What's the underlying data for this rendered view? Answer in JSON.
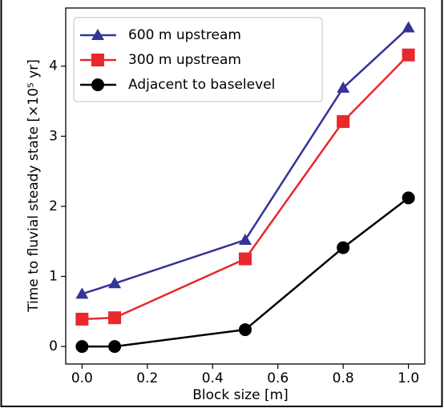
{
  "chart_data": {
    "type": "line",
    "xlabel": "Block size [m]",
    "ylabel": "Time to fluvial steady state [×10⁵ yr]",
    "x": [
      0.0,
      0.1,
      0.5,
      0.8,
      1.0
    ],
    "series": [
      {
        "name": "600 m upstream",
        "color": "#333399",
        "marker": "triangle",
        "values": [
          0.75,
          0.9,
          1.52,
          3.69,
          4.55
        ]
      },
      {
        "name": "300 m upstream",
        "color": "#e8282b",
        "marker": "square",
        "values": [
          0.39,
          0.41,
          1.25,
          3.21,
          4.16
        ]
      },
      {
        "name": "Adjacent to baselevel",
        "color": "#000000",
        "marker": "circle",
        "values": [
          0.0,
          0.0,
          0.24,
          1.41,
          2.12
        ]
      }
    ],
    "xlim": [
      -0.05,
      1.05
    ],
    "xticks": [
      {
        "value": 0,
        "label": "0.0"
      },
      0.2,
      0.4,
      0.6,
      0.8,
      {
        "value": 1,
        "label": "1.0"
      }
    ],
    "ylim": [
      -0.25,
      4.83
    ],
    "yticks": [
      0,
      1,
      2,
      3,
      4
    ],
    "legend": "upper-left"
  }
}
